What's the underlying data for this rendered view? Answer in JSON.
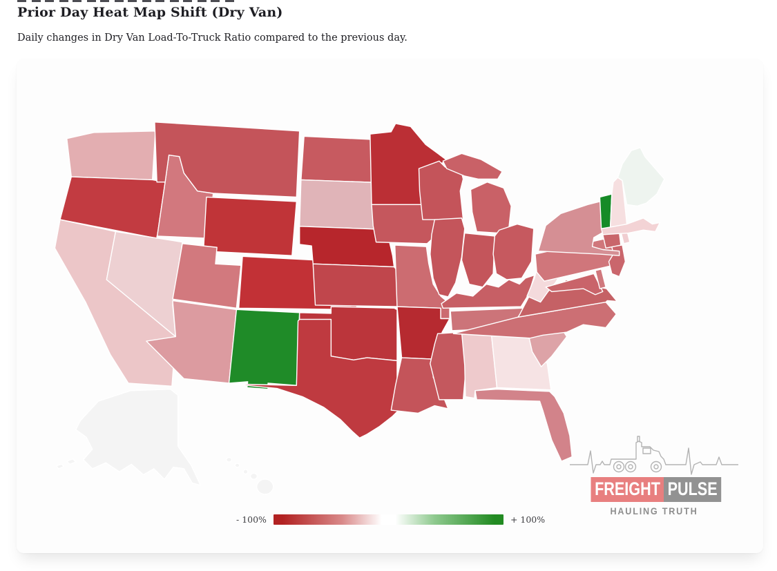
{
  "page": {
    "title": "Prior Day Heat Map Shift (Dry Van)",
    "subtitle": "Daily changes in Dry Van Load-To-Truck Ratio compared to the previous day."
  },
  "chart_data": {
    "type": "heatmap",
    "subtype": "us-state-choropleth",
    "title": "Prior Day Heat Map Shift (Dry Van)",
    "metric": "Daily change in Dry Van Load-To-Truck Ratio vs previous day (%)",
    "legend": {
      "min_label": "- 100%",
      "max_label": "+ 100%",
      "min_value": -100,
      "max_value": 100,
      "min_color": "#b22222",
      "mid_color": "#ffffff",
      "max_color": "#228b22",
      "position": "bottom-center"
    },
    "no_data_color": "#f4f4f4",
    "states": [
      {
        "id": "WA",
        "name": "Washington",
        "value_pct": -30,
        "color": "#e3aeb1"
      },
      {
        "id": "OR",
        "name": "Oregon",
        "value_pct": -85,
        "color": "#c23b41"
      },
      {
        "id": "CA",
        "name": "California",
        "value_pct": -20,
        "color": "#ecc6c8"
      },
      {
        "id": "NV",
        "name": "Nevada",
        "value_pct": -18,
        "color": "#edd0d2"
      },
      {
        "id": "ID",
        "name": "Idaho",
        "value_pct": -48,
        "color": "#d2787e"
      },
      {
        "id": "MT",
        "name": "Montana",
        "value_pct": -70,
        "color": "#c4545a"
      },
      {
        "id": "WY",
        "name": "Wyoming",
        "value_pct": -88,
        "color": "#c03438"
      },
      {
        "id": "UT",
        "name": "Utah",
        "value_pct": -48,
        "color": "#d2797e"
      },
      {
        "id": "CO",
        "name": "Colorado",
        "value_pct": -90,
        "color": "#c23136"
      },
      {
        "id": "AZ",
        "name": "Arizona",
        "value_pct": -38,
        "color": "#dc9ba0"
      },
      {
        "id": "NM",
        "name": "New Mexico",
        "value_pct": 85,
        "color": "#1f8b28"
      },
      {
        "id": "ND",
        "name": "North Dakota",
        "value_pct": -63,
        "color": "#c75a60"
      },
      {
        "id": "SD",
        "name": "South Dakota",
        "value_pct": -25,
        "color": "#e0b4b8"
      },
      {
        "id": "NE",
        "name": "Nebraska",
        "value_pct": -95,
        "color": "#b7262c"
      },
      {
        "id": "KS",
        "name": "Kansas",
        "value_pct": -75,
        "color": "#c0464c"
      },
      {
        "id": "OK",
        "name": "Oklahoma",
        "value_pct": -87,
        "color": "#bb353b"
      },
      {
        "id": "TX",
        "name": "Texas",
        "value_pct": -82,
        "color": "#bf3a40"
      },
      {
        "id": "MN",
        "name": "Minnesota",
        "value_pct": -90,
        "color": "#bb2f35"
      },
      {
        "id": "IA",
        "name": "Iowa",
        "value_pct": -69,
        "color": "#c5575d"
      },
      {
        "id": "MO",
        "name": "Missouri",
        "value_pct": -57,
        "color": "#cc6c71"
      },
      {
        "id": "AR",
        "name": "Arkansas",
        "value_pct": -93,
        "color": "#b62a30"
      },
      {
        "id": "LA",
        "name": "Louisiana",
        "value_pct": -70,
        "color": "#c4545a"
      },
      {
        "id": "WI",
        "name": "Wisconsin",
        "value_pct": -70,
        "color": "#c4545a"
      },
      {
        "id": "IL",
        "name": "Illinois",
        "value_pct": -68,
        "color": "#c4555b"
      },
      {
        "id": "MI",
        "name": "Michigan",
        "value_pct": -63,
        "color": "#c96167"
      },
      {
        "id": "IN",
        "name": "Indiana",
        "value_pct": -68,
        "color": "#c4555b"
      },
      {
        "id": "OH",
        "name": "Ohio",
        "value_pct": -66,
        "color": "#c6595f"
      },
      {
        "id": "KY",
        "name": "Kentucky",
        "value_pct": -62,
        "color": "#c75f65"
      },
      {
        "id": "TN",
        "name": "Tennessee",
        "value_pct": -50,
        "color": "#cc7479"
      },
      {
        "id": "MS",
        "name": "Mississippi",
        "value_pct": -67,
        "color": "#c4585e"
      },
      {
        "id": "AL",
        "name": "Alabama",
        "value_pct": -15,
        "color": "#eecacc"
      },
      {
        "id": "GA",
        "name": "Georgia",
        "value_pct": -7,
        "color": "#f6e3e4"
      },
      {
        "id": "FL",
        "name": "Florida",
        "value_pct": -45,
        "color": "#d2838a"
      },
      {
        "id": "SC",
        "name": "South Carolina",
        "value_pct": -33,
        "color": "#dda3a7"
      },
      {
        "id": "NC",
        "name": "North Carolina",
        "value_pct": -58,
        "color": "#cc6f74"
      },
      {
        "id": "VA",
        "name": "Virginia",
        "value_pct": -61,
        "color": "#c56165"
      },
      {
        "id": "WV",
        "name": "West Virginia",
        "value_pct": -10,
        "color": "#f4dadc"
      },
      {
        "id": "MD",
        "name": "Maryland",
        "value_pct": -60,
        "color": "#c9646a"
      },
      {
        "id": "DE",
        "name": "Delaware",
        "value_pct": -50,
        "color": "#d0787d"
      },
      {
        "id": "PA",
        "name": "Pennsylvania",
        "value_pct": -52,
        "color": "#d0767b"
      },
      {
        "id": "NJ",
        "name": "New Jersey",
        "value_pct": -60,
        "color": "#ca666c"
      },
      {
        "id": "NY",
        "name": "New York",
        "value_pct": -40,
        "color": "#d58f94"
      },
      {
        "id": "CT",
        "name": "Connecticut",
        "value_pct": -60,
        "color": "#c9666b"
      },
      {
        "id": "RI",
        "name": "Rhode Island",
        "value_pct": -15,
        "color": "#f0cdd0"
      },
      {
        "id": "MA",
        "name": "Massachusetts",
        "value_pct": -12,
        "color": "#f3d3d5"
      },
      {
        "id": "VT",
        "name": "Vermont",
        "value_pct": 85,
        "color": "#168b27"
      },
      {
        "id": "NH",
        "name": "New Hampshire",
        "value_pct": -8,
        "color": "#f6dfe0"
      },
      {
        "id": "ME",
        "name": "Maine",
        "value_pct": 3,
        "color": "#eef4ef"
      },
      {
        "id": "AK",
        "name": "Alaska",
        "value_pct": null,
        "color": "#f4f4f4"
      },
      {
        "id": "HI",
        "name": "Hawaii",
        "value_pct": null,
        "color": "#f4f4f4"
      }
    ]
  },
  "logo": {
    "brand_left": "FREIGHT",
    "brand_right": "PULSE",
    "tagline": "HAULING TRUTH",
    "freight_bg": "#e87f7f",
    "pulse_bg": "#929292",
    "line_color": "#b3b3b3"
  }
}
